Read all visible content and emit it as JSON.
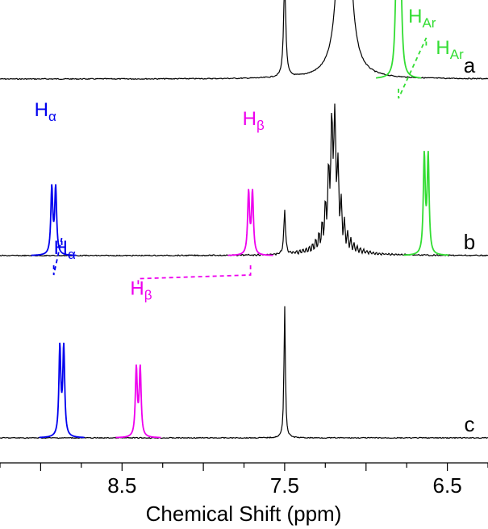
{
  "chart_data": {
    "type": "line",
    "xlabel": "Chemical Shift (ppm)",
    "xlim": [
      9.25,
      6.25
    ],
    "x_reversed": true,
    "x_ticks_labeled": [
      "8.5",
      "7.5",
      "6.5"
    ],
    "x_ticks_major": [
      9.0,
      8.5,
      8.0,
      7.5,
      7.0,
      6.5
    ],
    "series": [
      {
        "name": "a",
        "color_default": "#000000",
        "peaks": [
          {
            "ppm": 7.5,
            "height": 0.55,
            "width": 0.008,
            "color": "#000000"
          },
          {
            "ppm": 7.14,
            "height": 1.3,
            "width": 0.025,
            "color": "#000000"
          },
          {
            "ppm": 7.13,
            "height": 1.3,
            "width": 0.025,
            "color": "#000000"
          },
          {
            "ppm": 6.8,
            "height": 1.2,
            "width": 0.014,
            "color": "#33dd33",
            "label": "H",
            "label_sub": "Ar"
          }
        ]
      },
      {
        "name": "b",
        "color_default": "#000000",
        "peaks": [
          {
            "ppm": 8.92,
            "height": 0.75,
            "width": 0.01,
            "color": "#0000ee",
            "label": "H",
            "label_sub": "α"
          },
          {
            "ppm": 7.71,
            "height": 0.7,
            "width": 0.01,
            "color": "#ee00ee",
            "label": "H",
            "label_sub": "β"
          },
          {
            "ppm": 7.5,
            "height": 0.25,
            "width": 0.006,
            "color": "#000000"
          },
          {
            "ppm": 7.2,
            "height": 0.72,
            "width": 0.035,
            "color": "#000000"
          },
          {
            "ppm": 6.63,
            "height": 1.1,
            "width": 0.01,
            "color": "#33dd33",
            "label": "H",
            "label_sub": "Ar"
          }
        ]
      },
      {
        "name": "c",
        "color_default": "#000000",
        "peaks": [
          {
            "ppm": 8.87,
            "height": 1.0,
            "width": 0.01,
            "color": "#0000ee",
            "label": "H",
            "label_sub": "α"
          },
          {
            "ppm": 8.4,
            "height": 0.77,
            "width": 0.01,
            "color": "#ee00ee",
            "label": "H",
            "label_sub": "β"
          },
          {
            "ppm": 7.5,
            "height": 0.75,
            "width": 0.005,
            "color": "#000000"
          }
        ]
      }
    ],
    "correlations": [
      {
        "from_series": "a",
        "to_series": "b",
        "from_ppm": 6.8,
        "to_ppm": 6.63,
        "color": "#33dd33"
      },
      {
        "from_series": "b",
        "to_series": "c",
        "from_ppm": 8.92,
        "to_ppm": 8.87,
        "color": "#0000ee"
      },
      {
        "from_series": "b",
        "to_series": "c",
        "from_ppm": 7.71,
        "to_ppm": 8.4,
        "color": "#ee00ee"
      }
    ]
  }
}
